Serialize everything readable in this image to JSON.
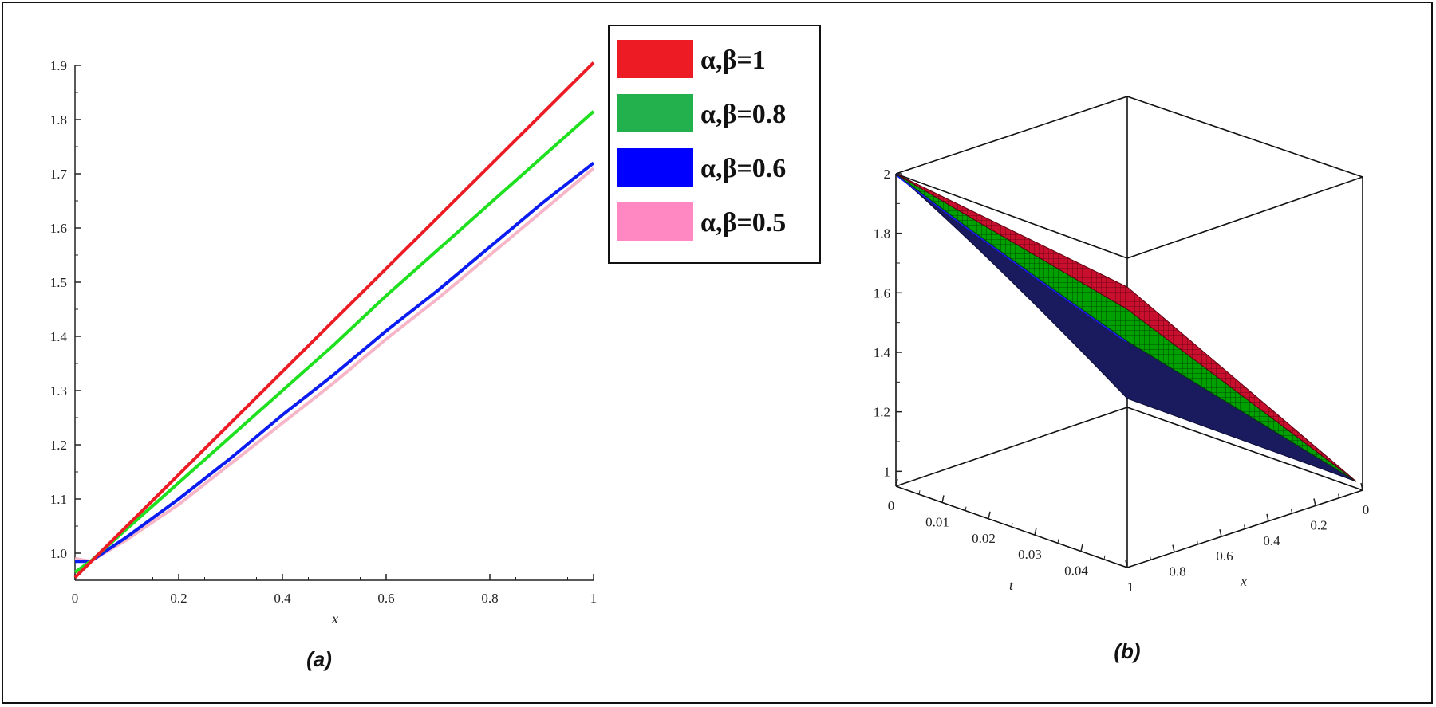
{
  "chart_data": [
    {
      "type": "line",
      "panel_label": "(a)",
      "xlabel": "x",
      "ylabel": "",
      "xlim": [
        0,
        1
      ],
      "ylim": [
        0.95,
        1.9
      ],
      "x_ticks": [
        "0",
        "0.2",
        "0.4",
        "0.6",
        "0.8",
        "1"
      ],
      "y_ticks": [
        "1.0",
        "1.1",
        "1.2",
        "1.3",
        "1.4",
        "1.5",
        "1.6",
        "1.7",
        "1.8",
        "1.9"
      ],
      "legend_position": "top-right",
      "series": [
        {
          "name": "α,β=1",
          "color": "#ed1c24",
          "x": [
            0,
            0.1,
            0.2,
            0.3,
            0.4,
            0.5,
            0.6,
            0.7,
            0.8,
            0.9,
            1.0
          ],
          "y": [
            0.955,
            1.05,
            1.145,
            1.24,
            1.335,
            1.43,
            1.525,
            1.62,
            1.715,
            1.81,
            1.905
          ]
        },
        {
          "name": "α,β=0.8",
          "color": "#1fe01f",
          "x": [
            0,
            0.03,
            0.1,
            0.2,
            0.3,
            0.4,
            0.5,
            0.6,
            0.7,
            0.8,
            0.9,
            1.0
          ],
          "y": [
            0.965,
            0.985,
            1.045,
            1.13,
            1.215,
            1.3,
            1.385,
            1.475,
            1.56,
            1.645,
            1.73,
            1.815
          ]
        },
        {
          "name": "α,β=0.6",
          "color": "#0a1cf0",
          "x": [
            0,
            0.03,
            0.1,
            0.2,
            0.3,
            0.4,
            0.5,
            0.6,
            0.7,
            0.8,
            0.9,
            1.0
          ],
          "y": [
            0.985,
            0.985,
            1.03,
            1.1,
            1.175,
            1.255,
            1.33,
            1.41,
            1.485,
            1.565,
            1.645,
            1.72
          ]
        },
        {
          "name": "α,β=0.5",
          "color": "#f7b6c8",
          "x": [
            0,
            0.03,
            0.1,
            0.2,
            0.3,
            0.4,
            0.5,
            0.6,
            0.7,
            0.8,
            0.9,
            1.0
          ],
          "y": [
            0.99,
            0.985,
            1.025,
            1.09,
            1.165,
            1.24,
            1.315,
            1.395,
            1.47,
            1.55,
            1.63,
            1.71
          ]
        }
      ]
    },
    {
      "type": "surface",
      "panel_label": "(b)",
      "xlabel": "x",
      "tlabel": "t",
      "xlim": [
        0,
        1
      ],
      "tlim": [
        0,
        0.05
      ],
      "zlim": [
        0.95,
        2.0
      ],
      "x_ticks": [
        "0",
        "0.2",
        "0.4",
        "0.6",
        "0.8",
        "1"
      ],
      "t_ticks": [
        "0",
        "0.01",
        "0.02",
        "0.03",
        "0.04"
      ],
      "z_ticks": [
        "1",
        "1.2",
        "1.4",
        "1.6",
        "1.8",
        "2"
      ],
      "surfaces": [
        {
          "name": "α,β=1",
          "color": "#c8102e"
        },
        {
          "name": "α,β=0.8",
          "color": "#00a000"
        },
        {
          "name": "α,β=0.6",
          "color": "#1a1a8c"
        },
        {
          "name": "α,β=0.5",
          "color": "#d8b4bc"
        }
      ]
    }
  ],
  "legend": {
    "items": [
      {
        "label": "α,β=1",
        "color": "#ed1c24"
      },
      {
        "label": "α,β=0.8",
        "color": "#22b14c"
      },
      {
        "label": "α,β=0.6",
        "color": "#0000ff"
      },
      {
        "label": "α,β=0.5",
        "color": "#ff88c2"
      }
    ]
  }
}
